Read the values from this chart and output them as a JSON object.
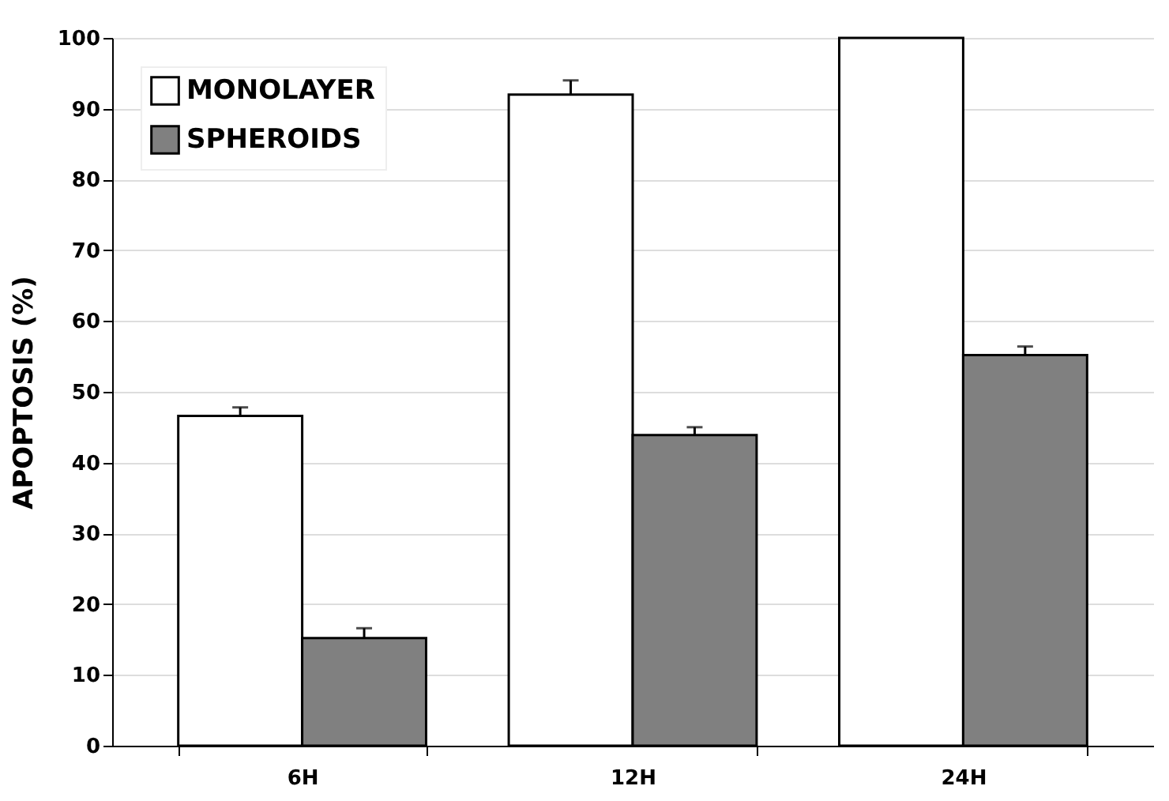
{
  "chart_data": {
    "type": "bar",
    "ylabel": "APOPTOSIS (%)",
    "categories": [
      "6H",
      "12H",
      "24H"
    ],
    "series": [
      {
        "name": "MONOLAYER",
        "color": "#ffffff",
        "values": [
          46.6,
          92.0,
          100
        ],
        "errors": [
          [
            46.6,
            47.8
          ],
          [
            92.0,
            94.0
          ],
          null
        ]
      },
      {
        "name": "SPHEROIDS",
        "color": "#808080",
        "values": [
          15.2,
          43.9,
          55.2
        ],
        "errors": [
          [
            15.2,
            16.6
          ],
          [
            43.9,
            45.0
          ],
          [
            55.2,
            56.4
          ]
        ]
      }
    ],
    "ylim": [
      0,
      100
    ],
    "yticks": [
      0,
      10,
      20,
      30,
      40,
      50,
      60,
      70,
      80,
      90,
      100
    ],
    "grid": "y",
    "legend": "top left"
  }
}
